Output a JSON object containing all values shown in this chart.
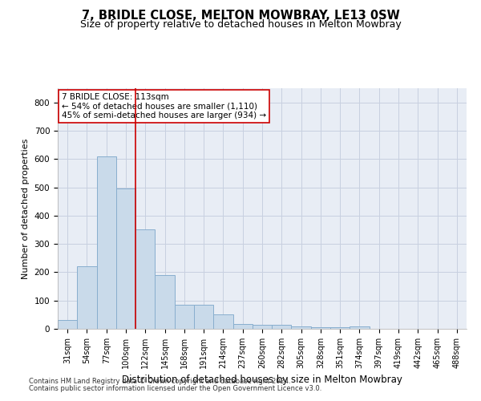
{
  "title": "7, BRIDLE CLOSE, MELTON MOWBRAY, LE13 0SW",
  "subtitle": "Size of property relative to detached houses in Melton Mowbray",
  "xlabel": "Distribution of detached houses by size in Melton Mowbray",
  "ylabel": "Number of detached properties",
  "categories": [
    "31sqm",
    "54sqm",
    "77sqm",
    "100sqm",
    "122sqm",
    "145sqm",
    "168sqm",
    "191sqm",
    "214sqm",
    "237sqm",
    "260sqm",
    "282sqm",
    "305sqm",
    "328sqm",
    "351sqm",
    "374sqm",
    "397sqm",
    "419sqm",
    "442sqm",
    "465sqm",
    "488sqm"
  ],
  "values": [
    30,
    220,
    610,
    495,
    350,
    190,
    85,
    85,
    50,
    18,
    13,
    13,
    8,
    5,
    5,
    8,
    0,
    0,
    0,
    0,
    0
  ],
  "bar_color": "#c9daea",
  "bar_edge_color": "#88aece",
  "vline_x_index": 3.5,
  "vline_color": "#cc0000",
  "annotation_line1": "7 BRIDLE CLOSE: 113sqm",
  "annotation_line2": "← 54% of detached houses are smaller (1,110)",
  "annotation_line3": "45% of semi-detached houses are larger (934) →",
  "annotation_box_color": "#cc0000",
  "annotation_box_bg": "#ffffff",
  "ylim": [
    0,
    850
  ],
  "yticks": [
    0,
    100,
    200,
    300,
    400,
    500,
    600,
    700,
    800
  ],
  "grid_color": "#c8d0e0",
  "bg_color": "#e8edf5",
  "footer_line1": "Contains HM Land Registry data © Crown copyright and database right 2024.",
  "footer_line2": "Contains public sector information licensed under the Open Government Licence v3.0.",
  "title_fontsize": 10.5,
  "subtitle_fontsize": 9,
  "tick_fontsize": 7,
  "ylabel_fontsize": 8,
  "xlabel_fontsize": 8.5,
  "annotation_fontsize": 7.5,
  "footer_fontsize": 6
}
